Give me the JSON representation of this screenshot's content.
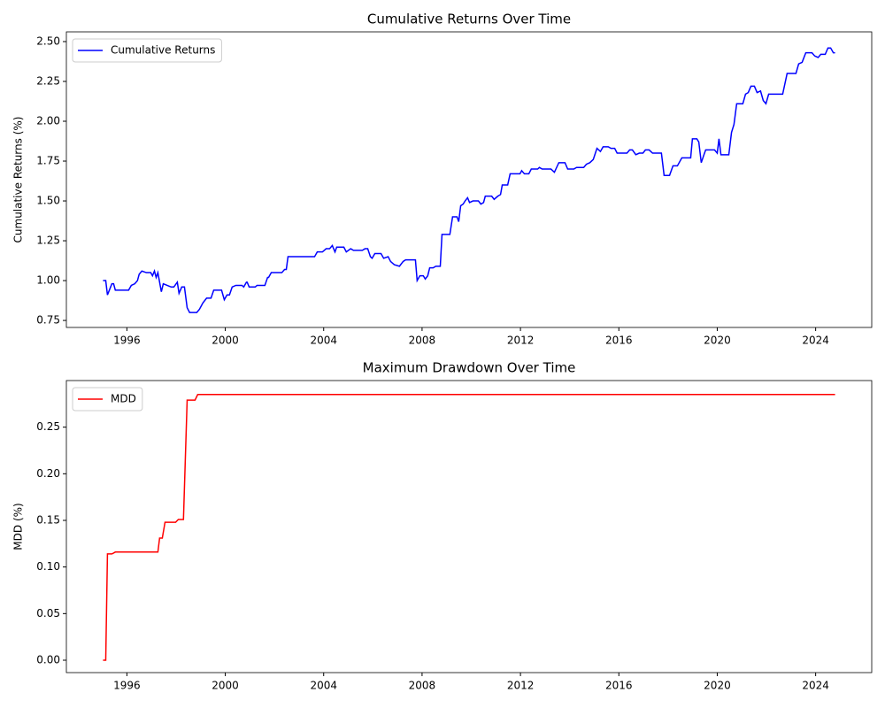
{
  "chart_data": [
    {
      "type": "line",
      "title": "Cumulative Returns Over Time",
      "y_label": "Cumulative Returns (%)",
      "legend": "upper left",
      "grid": false,
      "x": [
        1995.03,
        1995.14,
        1995.21,
        1995.39,
        1995.46,
        1995.53,
        1996.07,
        1996.18,
        1996.32,
        1996.43,
        1996.5,
        1996.61,
        1996.79,
        1996.97,
        1997.04,
        1997.12,
        1997.19,
        1997.26,
        1997.4,
        1997.48,
        1997.8,
        1997.91,
        1998.05,
        1998.12,
        1998.23,
        1998.34,
        1998.45,
        1998.55,
        1998.84,
        1998.95,
        1999.09,
        1999.24,
        1999.42,
        1999.53,
        1999.85,
        1999.96,
        2000.07,
        2000.17,
        2000.28,
        2000.43,
        2000.68,
        2000.75,
        2000.86,
        2000.89,
        2000.97,
        2001.22,
        2001.29,
        2001.61,
        2001.72,
        2001.76,
        2001.87,
        2002.3,
        2002.41,
        2002.48,
        2002.55,
        2003.63,
        2003.74,
        2003.95,
        2004.1,
        2004.24,
        2004.35,
        2004.46,
        2004.53,
        2004.82,
        2004.92,
        2005.1,
        2005.21,
        2005.57,
        2005.68,
        2005.79,
        2005.9,
        2005.97,
        2006.08,
        2006.33,
        2006.44,
        2006.62,
        2006.72,
        2006.87,
        2007.08,
        2007.23,
        2007.33,
        2007.73,
        2007.8,
        2007.91,
        2008.05,
        2008.13,
        2008.23,
        2008.31,
        2008.45,
        2008.56,
        2008.74,
        2008.81,
        2009.13,
        2009.24,
        2009.42,
        2009.49,
        2009.57,
        2009.67,
        2009.75,
        2009.85,
        2009.93,
        2010.07,
        2010.29,
        2010.39,
        2010.5,
        2010.57,
        2010.83,
        2010.93,
        2011.08,
        2011.19,
        2011.26,
        2011.48,
        2011.58,
        2011.98,
        2012.05,
        2012.16,
        2012.34,
        2012.44,
        2012.7,
        2012.77,
        2012.88,
        2013.24,
        2013.38,
        2013.56,
        2013.81,
        2013.92,
        2014.17,
        2014.28,
        2014.57,
        2014.68,
        2014.82,
        2014.96,
        2015.11,
        2015.25,
        2015.36,
        2015.57,
        2015.68,
        2015.83,
        2015.93,
        2016.33,
        2016.44,
        2016.55,
        2016.69,
        2016.83,
        2016.98,
        2017.08,
        2017.23,
        2017.37,
        2017.59,
        2017.73,
        2017.84,
        2018.06,
        2018.2,
        2018.38,
        2018.56,
        2018.92,
        2018.99,
        2019.17,
        2019.25,
        2019.35,
        2019.46,
        2019.53,
        2019.89,
        2020.0,
        2020.07,
        2020.15,
        2020.47,
        2020.58,
        2020.68,
        2020.79,
        2021.04,
        2021.15,
        2021.26,
        2021.37,
        2021.51,
        2021.62,
        2021.76,
        2021.87,
        2021.98,
        2022.09,
        2022.66,
        2022.84,
        2023.2,
        2023.31,
        2023.45,
        2023.6,
        2023.85,
        2023.96,
        2024.1,
        2024.21,
        2024.39,
        2024.5,
        2024.61,
        2024.72,
        2024.79
      ],
      "series": [
        {
          "name": "Cumulative Returns",
          "color": "#0000ff",
          "values": [
            1.0,
            1.0,
            0.91,
            0.98,
            0.98,
            0.94,
            0.94,
            0.97,
            0.98,
            1.0,
            1.04,
            1.06,
            1.05,
            1.05,
            1.03,
            1.06,
            1.02,
            1.05,
            0.93,
            0.98,
            0.96,
            0.96,
            0.99,
            0.92,
            0.96,
            0.96,
            0.83,
            0.8,
            0.8,
            0.82,
            0.86,
            0.89,
            0.89,
            0.94,
            0.94,
            0.88,
            0.91,
            0.91,
            0.96,
            0.97,
            0.97,
            0.96,
            0.99,
            0.99,
            0.96,
            0.96,
            0.97,
            0.97,
            1.02,
            1.02,
            1.05,
            1.05,
            1.07,
            1.07,
            1.15,
            1.15,
            1.18,
            1.18,
            1.2,
            1.2,
            1.22,
            1.18,
            1.21,
            1.21,
            1.18,
            1.2,
            1.19,
            1.19,
            1.2,
            1.2,
            1.15,
            1.14,
            1.17,
            1.17,
            1.14,
            1.15,
            1.12,
            1.1,
            1.09,
            1.12,
            1.13,
            1.13,
            1.0,
            1.03,
            1.03,
            1.01,
            1.03,
            1.08,
            1.08,
            1.09,
            1.09,
            1.29,
            1.29,
            1.4,
            1.4,
            1.37,
            1.47,
            1.48,
            1.5,
            1.52,
            1.49,
            1.5,
            1.5,
            1.48,
            1.49,
            1.53,
            1.53,
            1.51,
            1.53,
            1.54,
            1.6,
            1.6,
            1.67,
            1.67,
            1.69,
            1.67,
            1.67,
            1.7,
            1.7,
            1.71,
            1.7,
            1.7,
            1.68,
            1.74,
            1.74,
            1.7,
            1.7,
            1.71,
            1.71,
            1.73,
            1.74,
            1.76,
            1.83,
            1.81,
            1.84,
            1.84,
            1.83,
            1.83,
            1.8,
            1.8,
            1.82,
            1.82,
            1.79,
            1.8,
            1.8,
            1.82,
            1.82,
            1.8,
            1.8,
            1.8,
            1.66,
            1.66,
            1.72,
            1.72,
            1.77,
            1.77,
            1.89,
            1.89,
            1.87,
            1.74,
            1.79,
            1.82,
            1.82,
            1.8,
            1.89,
            1.79,
            1.79,
            1.93,
            1.98,
            2.11,
            2.11,
            2.17,
            2.18,
            2.22,
            2.22,
            2.18,
            2.19,
            2.13,
            2.11,
            2.17,
            2.17,
            2.3,
            2.3,
            2.36,
            2.37,
            2.43,
            2.43,
            2.41,
            2.4,
            2.42,
            2.42,
            2.46,
            2.46,
            2.43,
            2.43
          ]
        }
      ],
      "xlim": [
        1993.54,
        2026.28
      ],
      "xticks": [
        1996,
        2000,
        2004,
        2008,
        2012,
        2016,
        2020,
        2024
      ],
      "ylim": [
        0.706,
        2.561
      ],
      "yticks": [
        0.75,
        {
          "value": 1.0,
          "label": "1.00"
        },
        1.25,
        {
          "value": 1.5,
          "label": "1.50"
        },
        1.75,
        {
          "value": 2.0,
          "label": "2.00"
        },
        2.25,
        {
          "value": 2.5,
          "label": "2.50"
        }
      ]
    },
    {
      "type": "line",
      "title": "Maximum Drawdown Over Time",
      "y_label": "MDD (%)",
      "legend": "upper left",
      "grid": false,
      "x": [
        1995.03,
        1995.14,
        1995.21,
        1995.39,
        1995.53,
        1997.26,
        1997.33,
        1997.44,
        1997.55,
        1997.98,
        1998.09,
        1998.3,
        1998.45,
        1998.77,
        1998.88,
        2024.79
      ],
      "series": [
        {
          "name": "MDD",
          "color": "#ff0000",
          "values": [
            0,
            0,
            0.114,
            0.114,
            0.116,
            0.116,
            0.131,
            0.131,
            0.148,
            0.148,
            0.151,
            0.151,
            0.279,
            0.279,
            0.285,
            0.285
          ]
        }
      ],
      "xlim": [
        1993.54,
        2026.28
      ],
      "xticks": [
        1996,
        2000,
        2004,
        2008,
        2012,
        2016,
        2020,
        2024
      ],
      "ylim": [
        -0.0133,
        0.3
      ],
      "yticks": [
        {
          "value": 0,
          "label": "0.00"
        },
        0.05,
        {
          "value": 0.1,
          "label": "0.10"
        },
        0.15,
        {
          "value": 0.2,
          "label": "0.20"
        },
        0.25
      ]
    }
  ]
}
